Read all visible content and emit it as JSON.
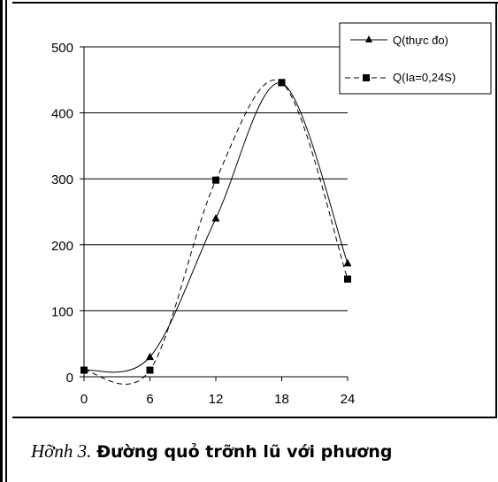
{
  "chart_data": {
    "type": "line",
    "x": [
      0,
      6,
      12,
      18,
      24
    ],
    "ylim": [
      0,
      500
    ],
    "xticks": [
      "0",
      "6",
      "12",
      "18",
      "24"
    ],
    "yticks": [
      "0",
      "100",
      "200",
      "300",
      "400",
      "500"
    ],
    "grid": true,
    "legend_position": "top-right",
    "series": [
      {
        "name": "Q(thực đo)",
        "values": [
          10,
          30,
          240,
          445,
          172
        ],
        "marker": "triangle",
        "line": "solid",
        "color": "#000000"
      },
      {
        "name": "Q(Ia=0,24S)",
        "values": [
          10,
          10,
          298,
          446,
          148
        ],
        "marker": "square",
        "line": "dashed",
        "color": "#000000"
      }
    ]
  },
  "caption": {
    "figure_label": "Hỡnh 3.",
    "text": "Đường quỏ trỡnh lũ với phương"
  }
}
